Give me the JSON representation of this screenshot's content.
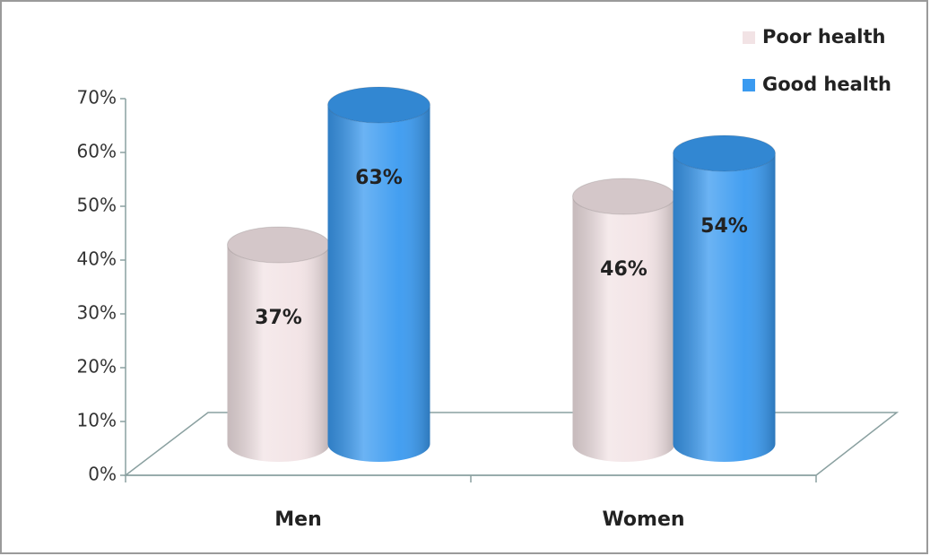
{
  "chart_data": {
    "type": "bar3d",
    "categories": [
      "Men",
      "Women"
    ],
    "series": [
      {
        "name": "Poor health",
        "color": "#f2e3e5",
        "values": [
          37,
          46
        ],
        "value_labels": [
          "37%",
          "46%"
        ]
      },
      {
        "name": "Good health",
        "color": "#3a9af0",
        "values": [
          63,
          54
        ],
        "value_labels": [
          "63%",
          "54%"
        ]
      }
    ],
    "ylim": [
      0,
      70
    ],
    "yticks": [
      {
        "value": 0,
        "label": "0%"
      },
      {
        "value": 10,
        "label": "10%"
      },
      {
        "value": 20,
        "label": "20%"
      },
      {
        "value": 30,
        "label": "30%"
      },
      {
        "value": 40,
        "label": "40%"
      },
      {
        "value": 50,
        "label": "50%"
      },
      {
        "value": 60,
        "label": "60%"
      },
      {
        "value": 70,
        "label": "70%"
      }
    ],
    "legend": "top-right"
  }
}
